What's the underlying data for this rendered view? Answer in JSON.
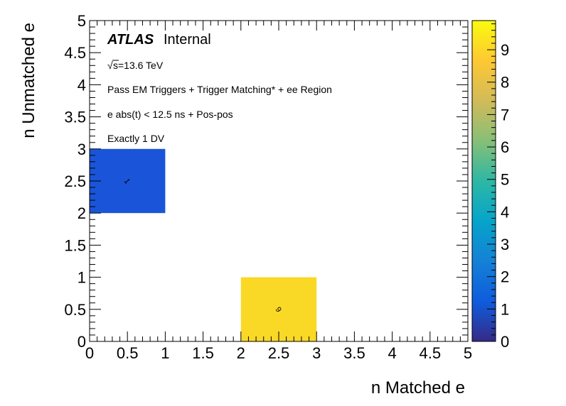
{
  "chart_data": {
    "type": "heatmap",
    "xlabel": "n Matched e",
    "ylabel": "n Unmatched e",
    "xlim": [
      0,
      5
    ],
    "ylim": [
      0,
      5
    ],
    "zlim": [
      0,
      9.9
    ],
    "x_ticks": [
      "0",
      "0.5",
      "1",
      "1.5",
      "2",
      "2.5",
      "3",
      "3.5",
      "4",
      "4.5",
      "5"
    ],
    "y_ticks": [
      "0",
      "0.5",
      "1",
      "1.5",
      "2",
      "2.5",
      "3",
      "3.5",
      "4",
      "4.5",
      "5"
    ],
    "z_ticks": [
      "0",
      "1",
      "2",
      "3",
      "4",
      "5",
      "6",
      "7",
      "8",
      "9"
    ],
    "cells": [
      {
        "x0": 0,
        "x1": 1,
        "y0": 2,
        "y1": 3,
        "value": 1,
        "label": "1",
        "color": "#1a55d9"
      },
      {
        "x0": 2,
        "x1": 3,
        "y0": 0,
        "y1": 1,
        "value": 9,
        "label": "9",
        "color": "#fad826"
      }
    ],
    "annotations": {
      "atlas": "ATLAS",
      "internal": "Internal",
      "energy_sqrt": "√",
      "energy_rest": "s=13.6 TeV",
      "line1": "Pass EM Triggers + Trigger Matching* + ee Region",
      "line2": "e abs(t) < 12.5 ns + Pos-pos",
      "line3": "Exactly 1 DV"
    },
    "colormap": [
      "#352a87",
      "#0f5cdd",
      "#1481d6",
      "#06a4ca",
      "#2eb7a4",
      "#87bf77",
      "#d1bb59",
      "#fec832",
      "#f9fb0e"
    ],
    "grid": false,
    "legend": "colorbar-right"
  }
}
